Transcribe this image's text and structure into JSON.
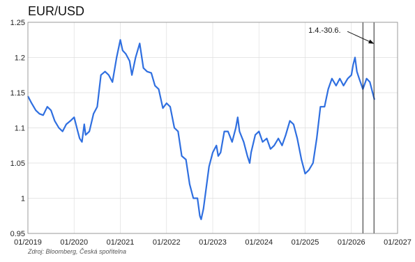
{
  "chart_data": {
    "type": "line",
    "title": "EUR/USD",
    "source": "Zdroj: Bloomberg, Česká spořitelna",
    "xlabel": "",
    "ylabel": "",
    "xlim": [
      2019.0,
      2027.0
    ],
    "ylim": [
      0.95,
      1.25
    ],
    "grid": true,
    "x_ticks": [
      {
        "value": 2019,
        "label": "01/2019"
      },
      {
        "value": 2020,
        "label": "01/2020"
      },
      {
        "value": 2021,
        "label": "01/2021"
      },
      {
        "value": 2022,
        "label": "01/2022"
      },
      {
        "value": 2023,
        "label": "01/2023"
      },
      {
        "value": 2024,
        "label": "01/2024"
      },
      {
        "value": 2025,
        "label": "01/2025"
      },
      {
        "value": 2026,
        "label": "01/2026"
      },
      {
        "value": 2027,
        "label": "01/2027"
      }
    ],
    "y_ticks": [
      {
        "value": 0.95,
        "label": "0.95"
      },
      {
        "value": 1.0,
        "label": "1"
      },
      {
        "value": 1.05,
        "label": "1.05"
      },
      {
        "value": 1.1,
        "label": "1.1"
      },
      {
        "value": 1.15,
        "label": "1.15"
      },
      {
        "value": 1.2,
        "label": "1.2"
      },
      {
        "value": 1.25,
        "label": "1.25"
      }
    ],
    "series": [
      {
        "color": "#2f6fe0",
        "points": [
          [
            2019.0,
            1.145
          ],
          [
            2019.08,
            1.135
          ],
          [
            2019.17,
            1.125
          ],
          [
            2019.25,
            1.12
          ],
          [
            2019.33,
            1.118
          ],
          [
            2019.42,
            1.13
          ],
          [
            2019.5,
            1.125
          ],
          [
            2019.58,
            1.11
          ],
          [
            2019.67,
            1.1
          ],
          [
            2019.75,
            1.095
          ],
          [
            2019.83,
            1.105
          ],
          [
            2019.92,
            1.11
          ],
          [
            2020.0,
            1.115
          ],
          [
            2020.08,
            1.095
          ],
          [
            2020.12,
            1.085
          ],
          [
            2020.17,
            1.08
          ],
          [
            2020.22,
            1.105
          ],
          [
            2020.25,
            1.09
          ],
          [
            2020.33,
            1.095
          ],
          [
            2020.42,
            1.12
          ],
          [
            2020.5,
            1.13
          ],
          [
            2020.58,
            1.175
          ],
          [
            2020.67,
            1.18
          ],
          [
            2020.75,
            1.175
          ],
          [
            2020.83,
            1.165
          ],
          [
            2020.92,
            1.2
          ],
          [
            2021.0,
            1.225
          ],
          [
            2021.05,
            1.21
          ],
          [
            2021.12,
            1.205
          ],
          [
            2021.2,
            1.195
          ],
          [
            2021.25,
            1.175
          ],
          [
            2021.33,
            1.2
          ],
          [
            2021.42,
            1.22
          ],
          [
            2021.5,
            1.185
          ],
          [
            2021.58,
            1.18
          ],
          [
            2021.67,
            1.178
          ],
          [
            2021.75,
            1.16
          ],
          [
            2021.83,
            1.155
          ],
          [
            2021.92,
            1.128
          ],
          [
            2022.0,
            1.135
          ],
          [
            2022.08,
            1.13
          ],
          [
            2022.17,
            1.1
          ],
          [
            2022.25,
            1.095
          ],
          [
            2022.33,
            1.06
          ],
          [
            2022.42,
            1.055
          ],
          [
            2022.5,
            1.02
          ],
          [
            2022.58,
            1.0
          ],
          [
            2022.67,
            1.0
          ],
          [
            2022.72,
            0.975
          ],
          [
            2022.75,
            0.97
          ],
          [
            2022.8,
            0.985
          ],
          [
            2022.83,
            1.0
          ],
          [
            2022.92,
            1.045
          ],
          [
            2023.0,
            1.065
          ],
          [
            2023.08,
            1.075
          ],
          [
            2023.12,
            1.06
          ],
          [
            2023.17,
            1.065
          ],
          [
            2023.25,
            1.095
          ],
          [
            2023.33,
            1.095
          ],
          [
            2023.42,
            1.08
          ],
          [
            2023.5,
            1.1
          ],
          [
            2023.54,
            1.115
          ],
          [
            2023.58,
            1.095
          ],
          [
            2023.67,
            1.08
          ],
          [
            2023.75,
            1.06
          ],
          [
            2023.8,
            1.05
          ],
          [
            2023.83,
            1.065
          ],
          [
            2023.92,
            1.09
          ],
          [
            2024.0,
            1.095
          ],
          [
            2024.08,
            1.08
          ],
          [
            2024.17,
            1.085
          ],
          [
            2024.25,
            1.07
          ],
          [
            2024.33,
            1.075
          ],
          [
            2024.42,
            1.085
          ],
          [
            2024.5,
            1.075
          ],
          [
            2024.58,
            1.09
          ],
          [
            2024.67,
            1.11
          ],
          [
            2024.75,
            1.105
          ],
          [
            2024.83,
            1.085
          ],
          [
            2024.92,
            1.055
          ],
          [
            2025.0,
            1.035
          ],
          [
            2025.08,
            1.04
          ],
          [
            2025.17,
            1.05
          ],
          [
            2025.25,
            1.085
          ],
          [
            2025.33,
            1.13
          ],
          [
            2025.42,
            1.13
          ],
          [
            2025.5,
            1.155
          ],
          [
            2025.58,
            1.17
          ],
          [
            2025.67,
            1.16
          ],
          [
            2025.75,
            1.17
          ],
          [
            2025.83,
            1.16
          ],
          [
            2025.92,
            1.17
          ],
          [
            2026.0,
            1.175
          ],
          [
            2026.04,
            1.19
          ],
          [
            2026.08,
            1.2
          ],
          [
            2026.12,
            1.18
          ],
          [
            2026.17,
            1.17
          ],
          [
            2026.25,
            1.155
          ],
          [
            2026.33,
            1.17
          ],
          [
            2026.4,
            1.165
          ],
          [
            2026.46,
            1.15
          ],
          [
            2026.5,
            1.14
          ]
        ]
      }
    ],
    "vlines": [
      {
        "x": 2026.25
      },
      {
        "x": 2026.49
      }
    ],
    "annotation": {
      "text": "1.4.-30.6.",
      "arrow_to": [
        2026.48,
        1.22
      ]
    }
  }
}
